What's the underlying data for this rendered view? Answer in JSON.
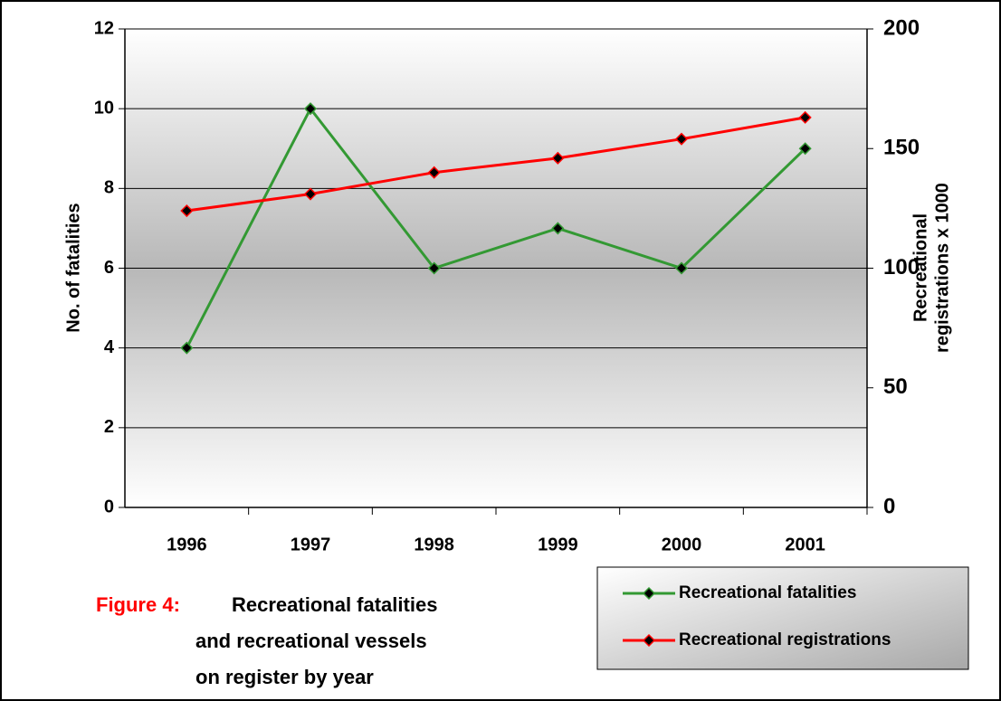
{
  "chart_data": {
    "type": "line",
    "caption_label": "Figure 4:",
    "caption_lines": [
      "Recreational fatalities",
      "and recreational vessels",
      "on register by year"
    ],
    "ylabel": "No. of fatalities",
    "y2label": [
      "Recreational",
      "registrations x 1000"
    ],
    "categories": [
      "1996",
      "1997",
      "1998",
      "1999",
      "2000",
      "2001"
    ],
    "series": [
      {
        "name": "Recreational fatalities",
        "color": "#339933",
        "values": [
          4,
          10,
          6,
          7,
          6,
          9
        ]
      },
      {
        "name": "Recreational registrations",
        "color": "#ff0000",
        "axis": "y2",
        "values": [
          124,
          131,
          140,
          146,
          154,
          163
        ]
      }
    ],
    "ylim": [
      0,
      12
    ],
    "yticks": [
      0,
      2,
      4,
      6,
      8,
      10,
      12
    ],
    "y2lim": [
      0,
      200
    ],
    "y2ticks": [
      0,
      50,
      100,
      150,
      200
    ],
    "grid": true
  }
}
